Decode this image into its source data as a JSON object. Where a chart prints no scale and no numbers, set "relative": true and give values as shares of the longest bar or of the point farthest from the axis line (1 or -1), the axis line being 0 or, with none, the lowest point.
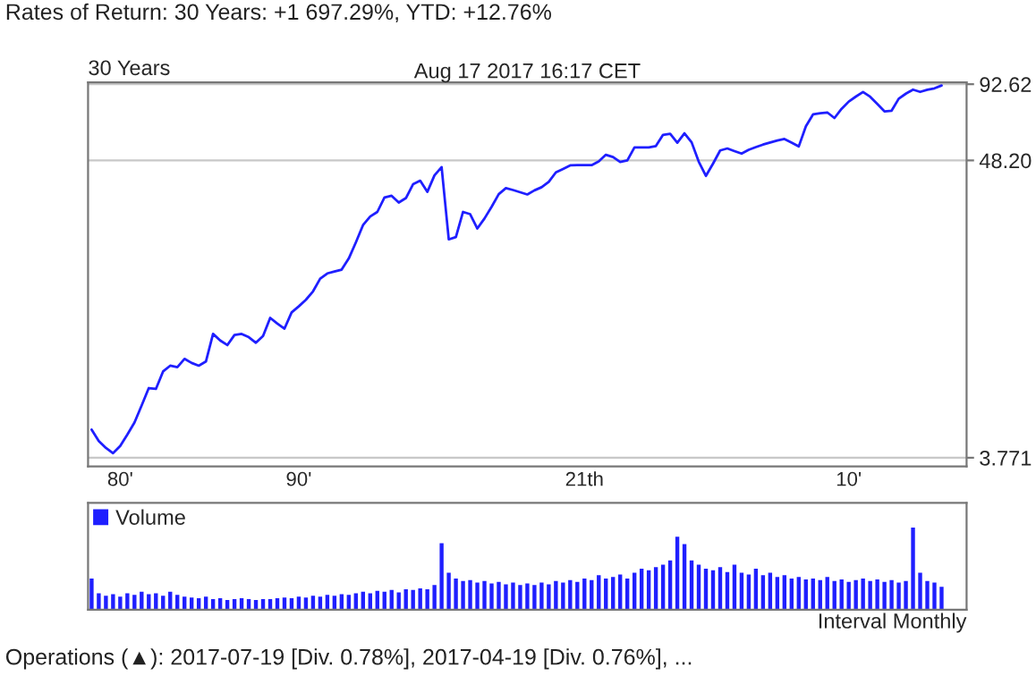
{
  "chart_data": [
    {
      "type": "line",
      "title": "30 Years",
      "annotations": [
        "Rates of Return: 30 Years: +1 697.29%, YTD: +12.76%",
        "Aug 17 2017 16:17 CET"
      ],
      "categories": [
        null,
        null,
        null,
        null,
        "80'",
        null,
        null,
        null,
        null,
        null,
        null,
        null,
        null,
        null,
        null,
        null,
        null,
        null,
        null,
        null,
        null,
        null,
        null,
        null,
        null,
        null,
        null,
        null,
        null,
        "90'",
        null,
        null,
        null,
        null,
        null,
        null,
        null,
        null,
        null,
        null,
        null,
        null,
        null,
        null,
        null,
        null,
        null,
        null,
        null,
        null,
        null,
        null,
        null,
        null,
        null,
        null,
        null,
        null,
        null,
        null,
        null,
        null,
        null,
        null,
        null,
        null,
        null,
        null,
        null,
        "21th",
        null,
        null,
        null,
        null,
        null,
        null,
        null,
        null,
        null,
        null,
        null,
        null,
        null,
        null,
        null,
        null,
        null,
        null,
        null,
        null,
        null,
        null,
        null,
        null,
        null,
        null,
        null,
        null,
        null,
        null,
        null,
        null,
        null,
        null,
        null,
        null,
        "10'",
        null,
        null,
        null,
        null,
        null,
        null,
        null,
        null,
        null,
        null,
        null,
        null,
        null
      ],
      "series": [
        {
          "color": "#1f1fff",
          "values": [
            4.8,
            4.35,
            4.1,
            3.92,
            4.17,
            4.6,
            5.1,
            5.9,
            6.85,
            6.8,
            7.9,
            8.3,
            8.2,
            8.8,
            8.5,
            8.3,
            8.6,
            10.9,
            10.3,
            9.9,
            10.8,
            10.9,
            10.6,
            10.1,
            10.7,
            12.5,
            11.9,
            11.4,
            13.1,
            13.8,
            14.6,
            15.7,
            17.5,
            18.3,
            18.6,
            18.9,
            20.8,
            23.9,
            27.7,
            29.8,
            31.0,
            35.1,
            35.6,
            33.6,
            34.9,
            39.3,
            40.5,
            36.8,
            42.4,
            45.5,
            24.5,
            25.0,
            31.0,
            30.4,
            26.9,
            29.3,
            32.4,
            36.1,
            38.0,
            37.4,
            36.7,
            36.0,
            37.3,
            38.3,
            40.1,
            43.5,
            44.8,
            46.2,
            46.3,
            46.3,
            46.3,
            47.8,
            50.6,
            49.6,
            47.6,
            48.2,
            53.9,
            53.9,
            53.9,
            54.5,
            60.0,
            60.5,
            56.1,
            60.8,
            56.3,
            47.7,
            42.2,
            46.9,
            52.5,
            53.4,
            52.2,
            51.1,
            52.8,
            54.0,
            55.2,
            56.2,
            57.2,
            57.9,
            56.1,
            54.3,
            64.6,
            71.5,
            72.2,
            72.7,
            69.3,
            75.0,
            79.8,
            83.3,
            86.6,
            83.2,
            78.2,
            73.4,
            73.8,
            81.8,
            85.4,
            88.4,
            86.7,
            88.3,
            89.4,
            91.6
          ]
        }
      ],
      "log": "y",
      "ylim": [
        3.5,
        94
      ],
      "yticks": [
        92.62,
        {
          "value": 48.2,
          "label": "48.20"
        },
        3.771
      ],
      "grid": "y",
      "legend": false
    },
    {
      "type": "bar",
      "relative": true,
      "annotations": [
        "Interval Monthly",
        "Operations (▲): 2017-07-19 [Div. 0.78%], 2017-04-19 [Div. 0.76%], ..."
      ],
      "categories": [
        null,
        null,
        null,
        null,
        null,
        null,
        null,
        null,
        null,
        null,
        null,
        null,
        null,
        null,
        null,
        null,
        null,
        null,
        null,
        null,
        null,
        null,
        null,
        null,
        null,
        null,
        null,
        null,
        null,
        null,
        null,
        null,
        null,
        null,
        null,
        null,
        null,
        null,
        null,
        null,
        null,
        null,
        null,
        null,
        null,
        null,
        null,
        null,
        null,
        null,
        null,
        null,
        null,
        null,
        null,
        null,
        null,
        null,
        null,
        null,
        null,
        null,
        null,
        null,
        null,
        null,
        null,
        null,
        null,
        null,
        null,
        null,
        null,
        null,
        null,
        null,
        null,
        null,
        null,
        null,
        null,
        null,
        null,
        null,
        null,
        null,
        null,
        null,
        null,
        null,
        null,
        null,
        null,
        null,
        null,
        null,
        null,
        null,
        null,
        null,
        null,
        null,
        null,
        null,
        null,
        null,
        null,
        null,
        null,
        null,
        null,
        null,
        null,
        null,
        null,
        null,
        null,
        null,
        null,
        null
      ],
      "series": [
        {
          "name": "Volume",
          "color": "#1f1fff",
          "values": [
            0.38,
            0.2,
            0.17,
            0.19,
            0.16,
            0.2,
            0.18,
            0.22,
            0.19,
            0.2,
            0.17,
            0.22,
            0.18,
            0.16,
            0.15,
            0.14,
            0.16,
            0.13,
            0.14,
            0.12,
            0.13,
            0.14,
            0.13,
            0.12,
            0.13,
            0.13,
            0.14,
            0.15,
            0.14,
            0.16,
            0.15,
            0.17,
            0.16,
            0.18,
            0.17,
            0.19,
            0.18,
            0.2,
            0.22,
            0.2,
            0.23,
            0.22,
            0.24,
            0.21,
            0.25,
            0.24,
            0.26,
            0.25,
            0.3,
            0.81,
            0.45,
            0.38,
            0.35,
            0.36,
            0.33,
            0.35,
            0.32,
            0.34,
            0.31,
            0.33,
            0.3,
            0.32,
            0.3,
            0.33,
            0.31,
            0.35,
            0.33,
            0.36,
            0.34,
            0.38,
            0.36,
            0.42,
            0.38,
            0.4,
            0.43,
            0.38,
            0.45,
            0.5,
            0.48,
            0.52,
            0.55,
            0.6,
            0.89,
            0.8,
            0.6,
            0.55,
            0.5,
            0.48,
            0.52,
            0.46,
            0.55,
            0.45,
            0.43,
            0.5,
            0.42,
            0.45,
            0.4,
            0.42,
            0.38,
            0.4,
            0.37,
            0.38,
            0.36,
            0.4,
            0.35,
            0.37,
            0.34,
            0.36,
            0.38,
            0.35,
            0.37,
            0.34,
            0.36,
            0.33,
            0.35,
            1.0,
            0.45,
            0.35,
            0.33,
            0.28
          ]
        }
      ],
      "tick_labels": false,
      "legend": "top left"
    }
  ]
}
